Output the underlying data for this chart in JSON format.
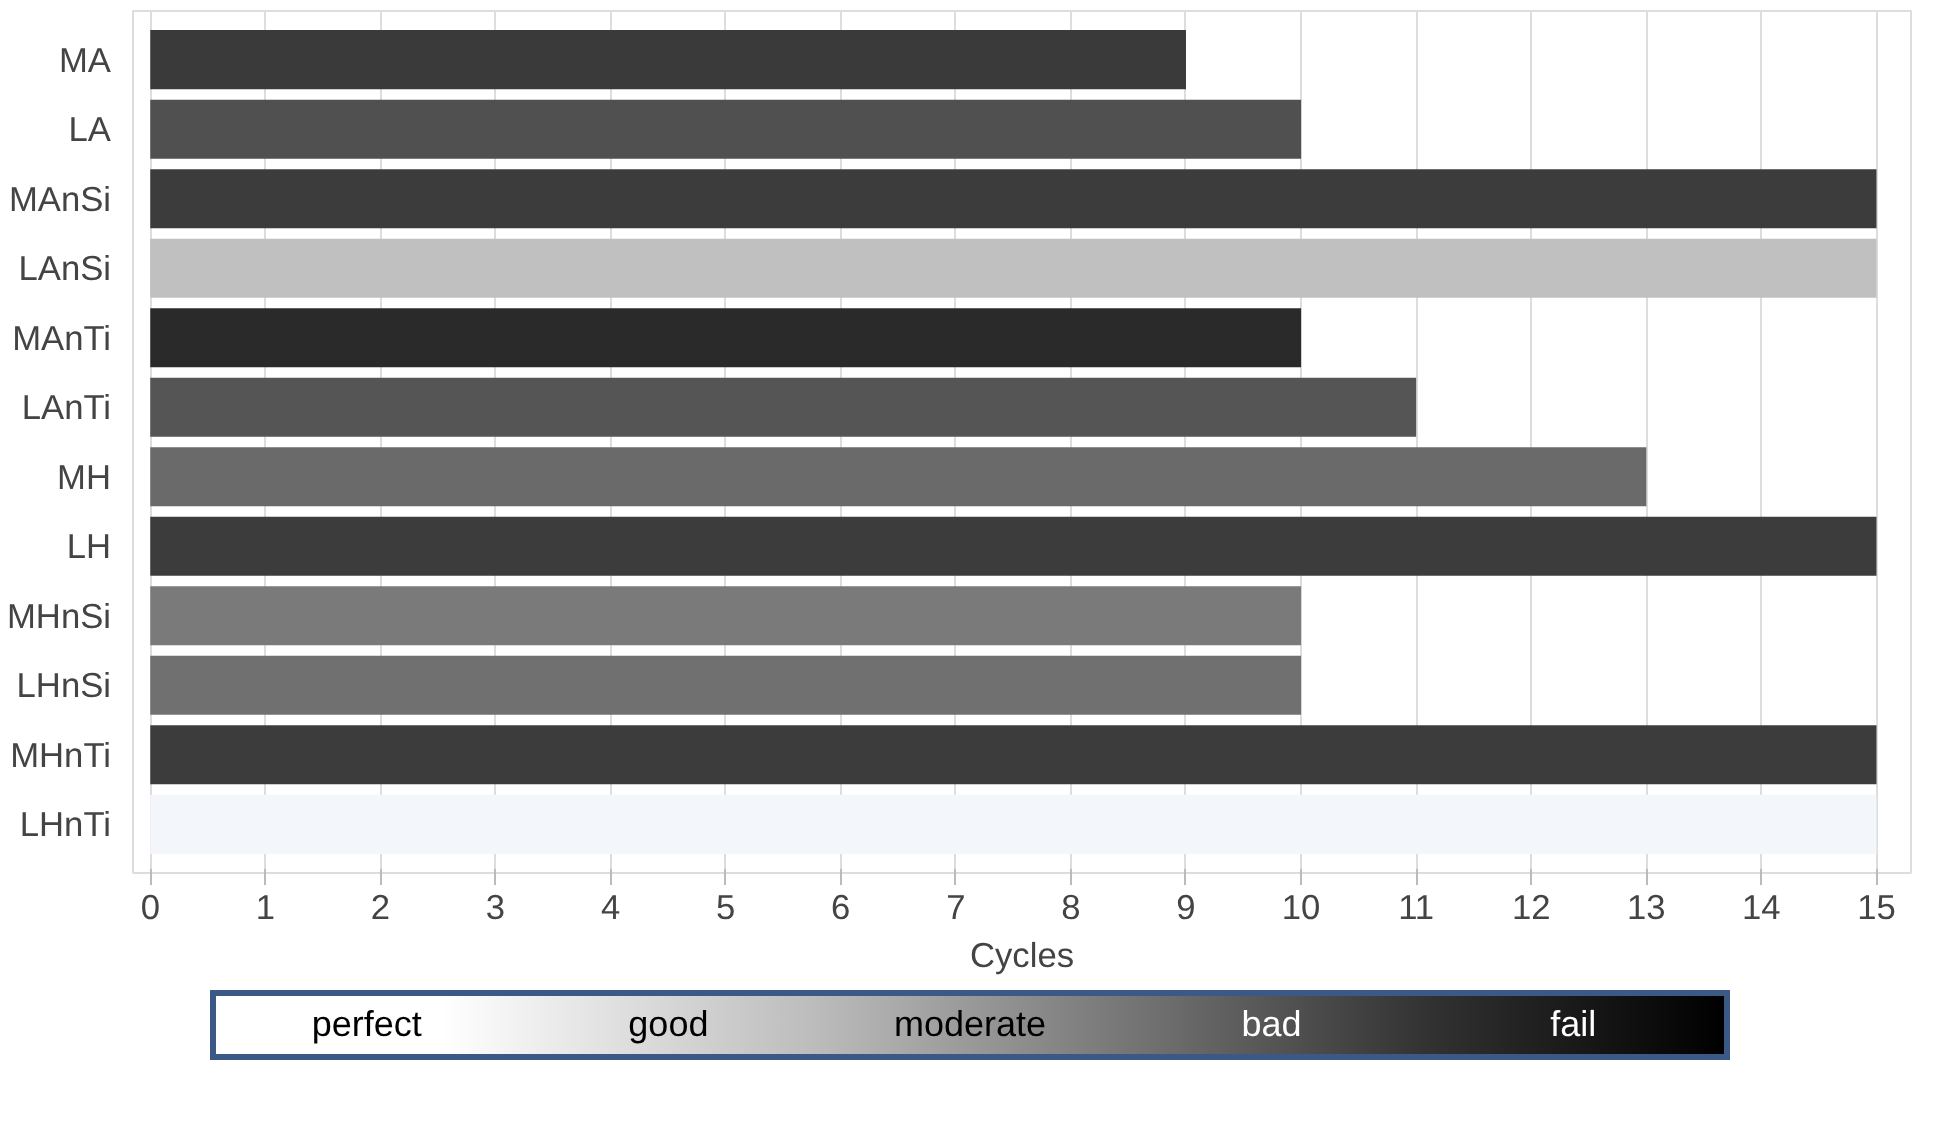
{
  "chart_data": {
    "type": "bar",
    "orientation": "horizontal",
    "xlabel": "Cycles",
    "categories": [
      "MA",
      "LA",
      "MAnSi",
      "LAnSi",
      "MAnTi",
      "LAnTi",
      "MH",
      "LH",
      "MHnSi",
      "LHnSi",
      "MHnTi",
      "LHnTi"
    ],
    "values": [
      9,
      10,
      15,
      15,
      10,
      11,
      13,
      15,
      10,
      10,
      15,
      15
    ],
    "colors": [
      "#3a3a3a",
      "#505050",
      "#3c3c3c",
      "#c0c0c0",
      "#2a2a2a",
      "#555555",
      "#6a6a6a",
      "#3c3c3c",
      "#7a7a7a",
      "#707070",
      "#3c3c3c",
      "#f3f6fb"
    ],
    "xlim": [
      -0.15,
      15.3
    ],
    "xticks": [
      0,
      1,
      2,
      3,
      4,
      5,
      6,
      7,
      8,
      9,
      10,
      11,
      12,
      13,
      14,
      15
    ],
    "grid": "x",
    "annotations": [
      "perfect",
      "good",
      "moderate",
      "bad",
      "fail"
    ]
  }
}
